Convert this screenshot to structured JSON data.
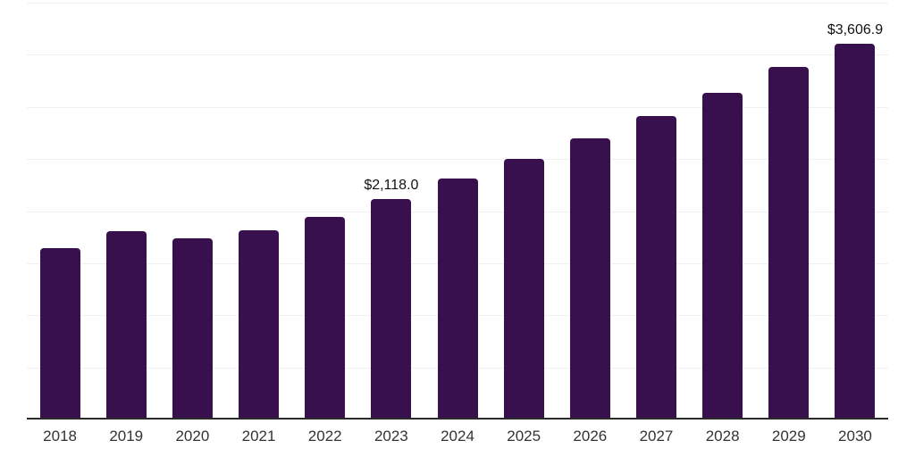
{
  "chart_data": {
    "type": "bar",
    "title": "",
    "xlabel": "",
    "ylabel": "",
    "categories": [
      "2018",
      "2019",
      "2020",
      "2021",
      "2022",
      "2023",
      "2024",
      "2025",
      "2026",
      "2027",
      "2028",
      "2029",
      "2030"
    ],
    "values": [
      1645,
      1805,
      1735,
      1815,
      1945,
      2118.0,
      2310,
      2500,
      2695,
      2910,
      3135,
      3385,
      3606.9
    ],
    "data_labels": [
      "",
      "",
      "",
      "",
      "",
      "$2,118.0",
      "",
      "",
      "",
      "",
      "",
      "",
      "$3,606.9"
    ],
    "ylim": [
      0,
      4000
    ],
    "gridline_step": 500,
    "grid": true,
    "legend_position": "none",
    "bar_color": "#37104D",
    "axis_line_color": "#2a2a2a",
    "gridline_color": "#f0f0f0",
    "data_label_color": "#111111",
    "tick_label_color": "#333333"
  }
}
